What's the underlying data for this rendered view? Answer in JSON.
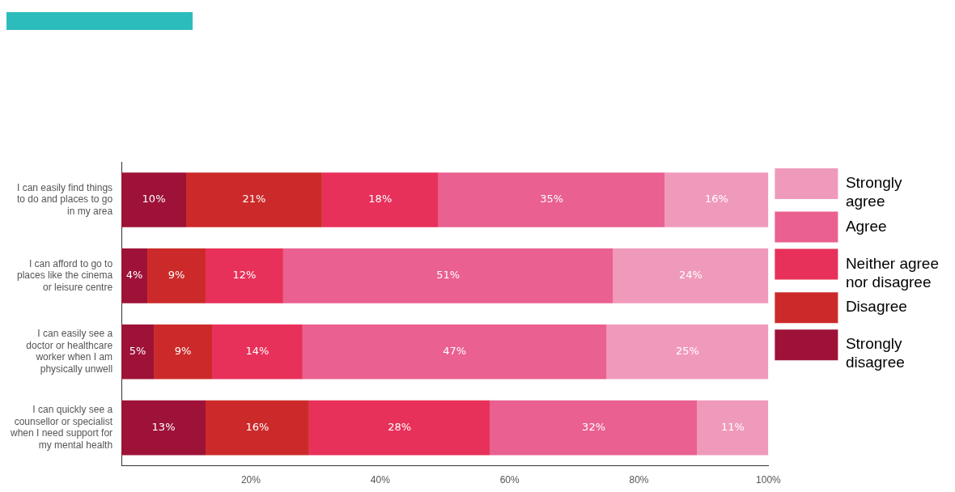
{
  "chart_data": {
    "type": "bar",
    "orientation": "horizontal",
    "stacked": true,
    "grid": false,
    "legend": "right",
    "categories": [
      "I can easily find things to do and places to go in my area",
      "I can afford to go to places like the cinema or leisure centre",
      "I can easily see a doctor or healthcare worker when I am physically unwell",
      "I can quickly see a counsellor or specialist when I need support for my mental health"
    ],
    "xlim": [
      0,
      100
    ],
    "xticks": [
      {
        "value": 0,
        "label": null
      },
      {
        "value": 20,
        "label": "20%"
      },
      {
        "value": 40,
        "label": "40%"
      },
      {
        "value": 60,
        "label": "60%"
      },
      {
        "value": 80,
        "label": "80%"
      },
      {
        "value": 100,
        "label": "100%"
      }
    ],
    "series": [
      {
        "name": "Strongly disagree",
        "color": "#9e1238",
        "values": [
          10,
          4,
          5,
          13
        ],
        "value_labels": [
          "10%",
          "4%",
          "5%",
          "13%"
        ]
      },
      {
        "name": "Disagree",
        "color": "#cc2a2a",
        "values": [
          21,
          9,
          9,
          16
        ],
        "value_labels": [
          "21%",
          "9%",
          "9%",
          "16%"
        ]
      },
      {
        "name": "Neither agree nor disagree",
        "color": "#e8315a",
        "values": [
          18,
          12,
          14,
          28
        ],
        "value_labels": [
          "18%",
          "12%",
          "14%",
          "28%"
        ]
      },
      {
        "name": "Agree",
        "color": "#ea6090",
        "values": [
          35,
          51,
          47,
          32
        ],
        "value_labels": [
          "35%",
          "51%",
          "47%",
          "32%"
        ]
      },
      {
        "name": "Strongly agree",
        "color": "#f09abb",
        "values": [
          16,
          24,
          25,
          11
        ],
        "value_labels": [
          "16%",
          "24%",
          "25%",
          "11%"
        ]
      }
    ]
  }
}
